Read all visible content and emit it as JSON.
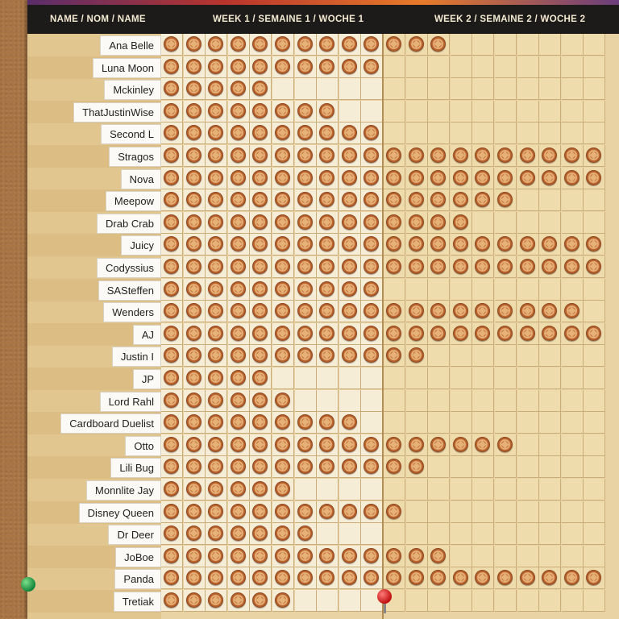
{
  "header": {
    "name_col": "NAME / NOM / NAME",
    "week1": "WEEK 1 / SEMAINE 1 / WOCHE 1",
    "week2": "WEEK 2 / SEMAINE 2 / WOCHE 2"
  },
  "icons": {
    "stamp": "stamp-token-icon",
    "green_pin": "green-pushpin-icon",
    "red_pin": "red-pushpin-icon"
  },
  "rows": [
    {
      "name": "Ana Belle",
      "stamps": 13
    },
    {
      "name": "Luna Moon",
      "stamps": 10
    },
    {
      "name": "Mckinley",
      "stamps": 5
    },
    {
      "name": "ThatJustinWise",
      "stamps": 8
    },
    {
      "name": "Second L",
      "stamps": 10
    },
    {
      "name": "Stragos",
      "stamps": 20
    },
    {
      "name": "Nova",
      "stamps": 20
    },
    {
      "name": "Meepow",
      "stamps": 16
    },
    {
      "name": "Drab Crab",
      "stamps": 14
    },
    {
      "name": "Juicy",
      "stamps": 20
    },
    {
      "name": "Codyssius",
      "stamps": 20
    },
    {
      "name": "SASteffen",
      "stamps": 10
    },
    {
      "name": "Wenders",
      "stamps": 19
    },
    {
      "name": "AJ",
      "stamps": 20
    },
    {
      "name": "Justin I",
      "stamps": 12
    },
    {
      "name": "JP",
      "stamps": 5
    },
    {
      "name": "Lord Rahl",
      "stamps": 6
    },
    {
      "name": "Cardboard Duelist",
      "stamps": 9
    },
    {
      "name": "Otto",
      "stamps": 16
    },
    {
      "name": "Lili Bug",
      "stamps": 12
    },
    {
      "name": "Monnlite Jay",
      "stamps": 6
    },
    {
      "name": "Disney Queen",
      "stamps": 11
    },
    {
      "name": "Dr Deer",
      "stamps": 7
    },
    {
      "name": "JoBoe",
      "stamps": 13
    },
    {
      "name": "Panda",
      "stamps": 20
    },
    {
      "name": "Tretiak",
      "stamps": 6
    }
  ]
}
